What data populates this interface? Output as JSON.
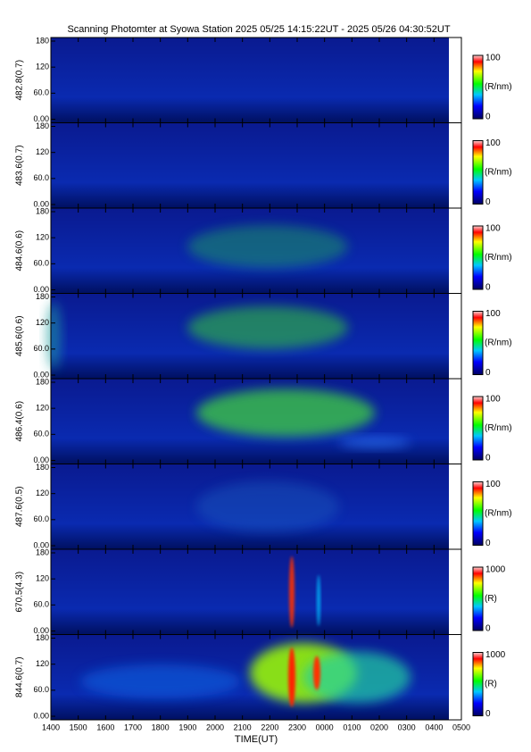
{
  "chart_data": {
    "type": "heatmap",
    "title": "Scanning Photomter at Syowa Station  2025 05/25 14:15:22UT - 2025 05/26 04:30:52UT",
    "xlabel": "TIME(UT)",
    "categories": [
      "1400",
      "1500",
      "1600",
      "1700",
      "1800",
      "1900",
      "2000",
      "2100",
      "2200",
      "2300",
      "0000",
      "0100",
      "0200",
      "0300",
      "0400",
      "0500"
    ],
    "panels": [
      {
        "ylabel": "482.8(0.7)",
        "ylim": [
          0,
          180
        ],
        "yticks": [
          {
            "value": 0,
            "label": "0.00"
          },
          {
            "value": 60,
            "label": "60.0"
          },
          120,
          180
        ],
        "colorbar": {
          "label": "(R/nm)",
          "lim": [
            0,
            100
          ],
          "ticks": [
            0,
            100
          ]
        }
      },
      {
        "ylabel": "483.6(0.7)",
        "ylim": [
          0,
          180
        ],
        "yticks": [
          {
            "value": 0,
            "label": "0.00"
          },
          {
            "value": 60,
            "label": "60.0"
          },
          120,
          180
        ],
        "colorbar": {
          "label": "(R/nm)",
          "lim": [
            0,
            100
          ],
          "ticks": [
            0,
            100
          ]
        }
      },
      {
        "ylabel": "484.6(0.6)",
        "ylim": [
          0,
          180
        ],
        "yticks": [
          {
            "value": 0,
            "label": "0.00"
          },
          {
            "value": 60,
            "label": "60.0"
          },
          120,
          180
        ],
        "colorbar": {
          "label": "(R/nm)",
          "lim": [
            0,
            100
          ],
          "ticks": [
            0,
            100
          ]
        }
      },
      {
        "ylabel": "485.6(0.6)",
        "ylim": [
          0,
          180
        ],
        "yticks": [
          {
            "value": 0,
            "label": "0.00"
          },
          {
            "value": 60,
            "label": "60.0"
          },
          120,
          180
        ],
        "colorbar": {
          "label": "(R/nm)",
          "lim": [
            0,
            100
          ],
          "ticks": [
            0,
            100
          ]
        }
      },
      {
        "ylabel": "486.4(0.6)",
        "ylim": [
          0,
          180
        ],
        "yticks": [
          {
            "value": 0,
            "label": "0.00"
          },
          {
            "value": 60,
            "label": "60.0"
          },
          120,
          180
        ],
        "colorbar": {
          "label": "(R/nm)",
          "lim": [
            0,
            100
          ],
          "ticks": [
            0,
            100
          ]
        }
      },
      {
        "ylabel": "487.6(0.5)",
        "ylim": [
          0,
          180
        ],
        "yticks": [
          {
            "value": 0,
            "label": "0.00"
          },
          {
            "value": 60,
            "label": "60.0"
          },
          120,
          180
        ],
        "colorbar": {
          "label": "(R/nm)",
          "lim": [
            0,
            100
          ],
          "ticks": [
            0,
            100
          ]
        }
      },
      {
        "ylabel": "670.5(4.3)",
        "ylim": [
          0,
          180
        ],
        "yticks": [
          {
            "value": 0,
            "label": "0.00"
          },
          {
            "value": 60,
            "label": "60.0"
          },
          120,
          180
        ],
        "colorbar": {
          "label": "(R)",
          "lim": [
            0,
            1000
          ],
          "ticks": [
            0,
            1000
          ]
        }
      },
      {
        "ylabel": "844.6(0.7)",
        "ylim": [
          0,
          180
        ],
        "yticks": [
          {
            "value": 0,
            "label": "0.00"
          },
          {
            "value": 60,
            "label": "60.0"
          },
          120,
          180
        ],
        "colorbar": {
          "label": "(R)",
          "lim": [
            0,
            1000
          ],
          "ticks": [
            0,
            1000
          ]
        }
      }
    ]
  }
}
